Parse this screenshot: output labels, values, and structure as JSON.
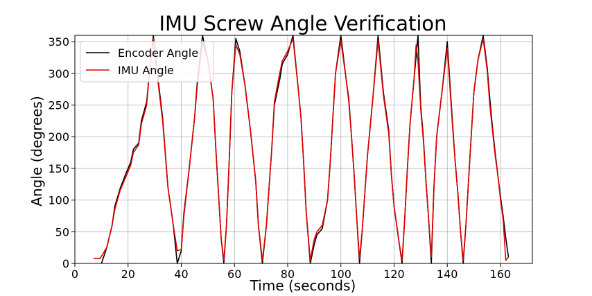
{
  "chart_data": {
    "type": "line",
    "title": "IMU Screw Angle Verification",
    "xlabel": "Time (seconds)",
    "ylabel": "Angle (degrees)",
    "xlim": [
      0,
      172
    ],
    "ylim": [
      0,
      360
    ],
    "xticks": [
      0,
      20,
      40,
      60,
      80,
      100,
      120,
      140,
      160
    ],
    "yticks": [
      0,
      50,
      100,
      150,
      200,
      250,
      300,
      350
    ],
    "grid": true,
    "legend_position": "top-left",
    "series": [
      {
        "name": "Encoder Angle",
        "color": "#000000",
        "points": [
          [
            10,
            0
          ],
          [
            12,
            25
          ],
          [
            14,
            60
          ],
          [
            15,
            90
          ],
          [
            17,
            118
          ],
          [
            19,
            140
          ],
          [
            21,
            160
          ],
          [
            22,
            180
          ],
          [
            24,
            190
          ],
          [
            25,
            225
          ],
          [
            27,
            255
          ],
          [
            28,
            300
          ],
          [
            29.5,
            360
          ],
          [
            31,
            300
          ],
          [
            33,
            230
          ],
          [
            35,
            120
          ],
          [
            37,
            60
          ],
          [
            38.5,
            0
          ],
          [
            40,
            20
          ],
          [
            41,
            80
          ],
          [
            43,
            150
          ],
          [
            45,
            230
          ],
          [
            46,
            285
          ],
          [
            48,
            360
          ],
          [
            50,
            320
          ],
          [
            52,
            260
          ],
          [
            53,
            180
          ],
          [
            54,
            110
          ],
          [
            55,
            40
          ],
          [
            56,
            0
          ],
          [
            57,
            60
          ],
          [
            58,
            160
          ],
          [
            59,
            270
          ],
          [
            60.5,
            355
          ],
          [
            62,
            335
          ],
          [
            64,
            280
          ],
          [
            66,
            210
          ],
          [
            68,
            130
          ],
          [
            69,
            60
          ],
          [
            70.5,
            0
          ],
          [
            72,
            60
          ],
          [
            74,
            180
          ],
          [
            75,
            250
          ],
          [
            77,
            290
          ],
          [
            78,
            315
          ],
          [
            80,
            330
          ],
          [
            82,
            360
          ],
          [
            84,
            275
          ],
          [
            85,
            230
          ],
          [
            86,
            160
          ],
          [
            87,
            80
          ],
          [
            88.5,
            0
          ],
          [
            90,
            30
          ],
          [
            91,
            45
          ],
          [
            93,
            55
          ],
          [
            95,
            100
          ],
          [
            96,
            160
          ],
          [
            97,
            230
          ],
          [
            98,
            300
          ],
          [
            100,
            360
          ],
          [
            102,
            290
          ],
          [
            103,
            260
          ],
          [
            104,
            200
          ],
          [
            105,
            140
          ],
          [
            106,
            70
          ],
          [
            107,
            0
          ],
          [
            108,
            50
          ],
          [
            110,
            170
          ],
          [
            112,
            260
          ],
          [
            114,
            360
          ],
          [
            116,
            270
          ],
          [
            118,
            210
          ],
          [
            119,
            140
          ],
          [
            120,
            90
          ],
          [
            122,
            30
          ],
          [
            123,
            0
          ],
          [
            124,
            70
          ],
          [
            125,
            150
          ],
          [
            126,
            220
          ],
          [
            127.5,
            290
          ],
          [
            129,
            360
          ],
          [
            130,
            250
          ],
          [
            131,
            200
          ],
          [
            132,
            130
          ],
          [
            133,
            70
          ],
          [
            134,
            0
          ],
          [
            135,
            120
          ],
          [
            136,
            200
          ],
          [
            138,
            270
          ],
          [
            140,
            350
          ],
          [
            142,
            220
          ],
          [
            143,
            160
          ],
          [
            144,
            110
          ],
          [
            145,
            50
          ],
          [
            146,
            0
          ],
          [
            147,
            60
          ],
          [
            148,
            130
          ],
          [
            149,
            200
          ],
          [
            150,
            270
          ],
          [
            151.5,
            320
          ],
          [
            153.5,
            360
          ],
          [
            155,
            310
          ],
          [
            156,
            260
          ],
          [
            157,
            215
          ],
          [
            158,
            175
          ],
          [
            159,
            140
          ],
          [
            160,
            105
          ],
          [
            161,
            75
          ],
          [
            162,
            40
          ],
          [
            163,
            10
          ]
        ]
      },
      {
        "name": "IMU Angle",
        "color": "#e00000",
        "points": [
          [
            7,
            8
          ],
          [
            9.5,
            8
          ],
          [
            12,
            25
          ],
          [
            14,
            60
          ],
          [
            15,
            85
          ],
          [
            17,
            115
          ],
          [
            19,
            135
          ],
          [
            21,
            155
          ],
          [
            22,
            175
          ],
          [
            24,
            187
          ],
          [
            25,
            220
          ],
          [
            27,
            250
          ],
          [
            28,
            300
          ],
          [
            29.5,
            355
          ],
          [
            31,
            295
          ],
          [
            33,
            225
          ],
          [
            35,
            120
          ],
          [
            37,
            60
          ],
          [
            38.5,
            20
          ],
          [
            40,
            22
          ],
          [
            41,
            75
          ],
          [
            43,
            150
          ],
          [
            45,
            230
          ],
          [
            46,
            280
          ],
          [
            48,
            350
          ],
          [
            50,
            320
          ],
          [
            52,
            260
          ],
          [
            53,
            180
          ],
          [
            54,
            110
          ],
          [
            55,
            40
          ],
          [
            56,
            5
          ],
          [
            57,
            60
          ],
          [
            58,
            160
          ],
          [
            59,
            270
          ],
          [
            60.5,
            345
          ],
          [
            62,
            330
          ],
          [
            64,
            280
          ],
          [
            66,
            210
          ],
          [
            68,
            130
          ],
          [
            69,
            60
          ],
          [
            70.5,
            5
          ],
          [
            72,
            60
          ],
          [
            74,
            180
          ],
          [
            75,
            255
          ],
          [
            77,
            300
          ],
          [
            78,
            320
          ],
          [
            80,
            335
          ],
          [
            82,
            355
          ],
          [
            84,
            275
          ],
          [
            85,
            230
          ],
          [
            86,
            160
          ],
          [
            87,
            80
          ],
          [
            88.5,
            5
          ],
          [
            90,
            38
          ],
          [
            91,
            50
          ],
          [
            93,
            60
          ],
          [
            95,
            100
          ],
          [
            96,
            160
          ],
          [
            97,
            230
          ],
          [
            98,
            300
          ],
          [
            100,
            352
          ],
          [
            102,
            290
          ],
          [
            103,
            255
          ],
          [
            104,
            200
          ],
          [
            105,
            140
          ],
          [
            106,
            70
          ],
          [
            107,
            8
          ],
          [
            108,
            50
          ],
          [
            110,
            170
          ],
          [
            112,
            260
          ],
          [
            114,
            352
          ],
          [
            116,
            265
          ],
          [
            118,
            205
          ],
          [
            119,
            140
          ],
          [
            120,
            90
          ],
          [
            122,
            30
          ],
          [
            123,
            5
          ],
          [
            124,
            70
          ],
          [
            125,
            150
          ],
          [
            126,
            220
          ],
          [
            127.5,
            290
          ],
          [
            128.3,
            345
          ],
          [
            129,
            320
          ],
          [
            130,
            245
          ],
          [
            131,
            195
          ],
          [
            132,
            130
          ],
          [
            133,
            70
          ],
          [
            134,
            10
          ],
          [
            135,
            120
          ],
          [
            136,
            200
          ],
          [
            138,
            270
          ],
          [
            140,
            340
          ],
          [
            142,
            215
          ],
          [
            143,
            160
          ],
          [
            144,
            110
          ],
          [
            145,
            50
          ],
          [
            146,
            5
          ],
          [
            147,
            60
          ],
          [
            148,
            130
          ],
          [
            149,
            200
          ],
          [
            150,
            270
          ],
          [
            151.5,
            320
          ],
          [
            153.5,
            355
          ],
          [
            155,
            305
          ],
          [
            156,
            250
          ],
          [
            157,
            210
          ],
          [
            158,
            170
          ],
          [
            159,
            140
          ],
          [
            160,
            100
          ],
          [
            161,
            70
          ],
          [
            162,
            5
          ],
          [
            163,
            10
          ]
        ]
      }
    ]
  }
}
